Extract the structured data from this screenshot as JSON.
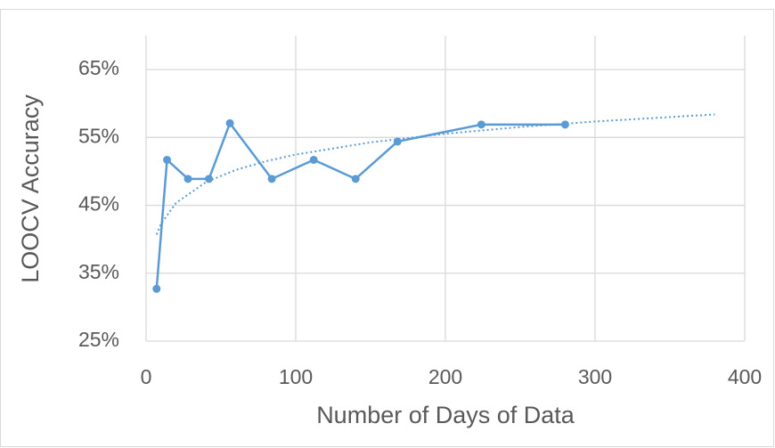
{
  "chart_data": {
    "type": "line",
    "x_label": "Number of Days of Data",
    "y_label": "LOOCV Accuracy",
    "x": [
      7,
      14,
      28,
      42,
      56,
      84,
      112,
      140,
      168,
      224,
      280
    ],
    "values": [
      32.7,
      51.7,
      48.9,
      48.9,
      57.1,
      48.9,
      51.7,
      48.9,
      54.4,
      56.9,
      56.9
    ],
    "color": "#5b9bd5",
    "trendline": {
      "style": "dotted",
      "x": [
        7,
        10,
        20,
        40,
        60,
        80,
        100,
        150,
        200,
        250,
        300,
        380
      ],
      "values": [
        40.7,
        42.28,
        45.35,
        48.42,
        50.22,
        51.49,
        52.48,
        54.28,
        55.55,
        56.54,
        57.35,
        58.39
      ]
    },
    "xlim": [
      0,
      400
    ],
    "xticks": [
      0,
      100,
      200,
      300,
      400
    ],
    "ylim": [
      25,
      70
    ],
    "yticks": [
      {
        "value": 25,
        "label": "25%"
      },
      {
        "value": 35,
        "label": "35%"
      },
      {
        "value": 45,
        "label": "45%"
      },
      {
        "value": 55,
        "label": "55%"
      },
      {
        "value": 65,
        "label": "65%"
      }
    ],
    "grid": true
  }
}
